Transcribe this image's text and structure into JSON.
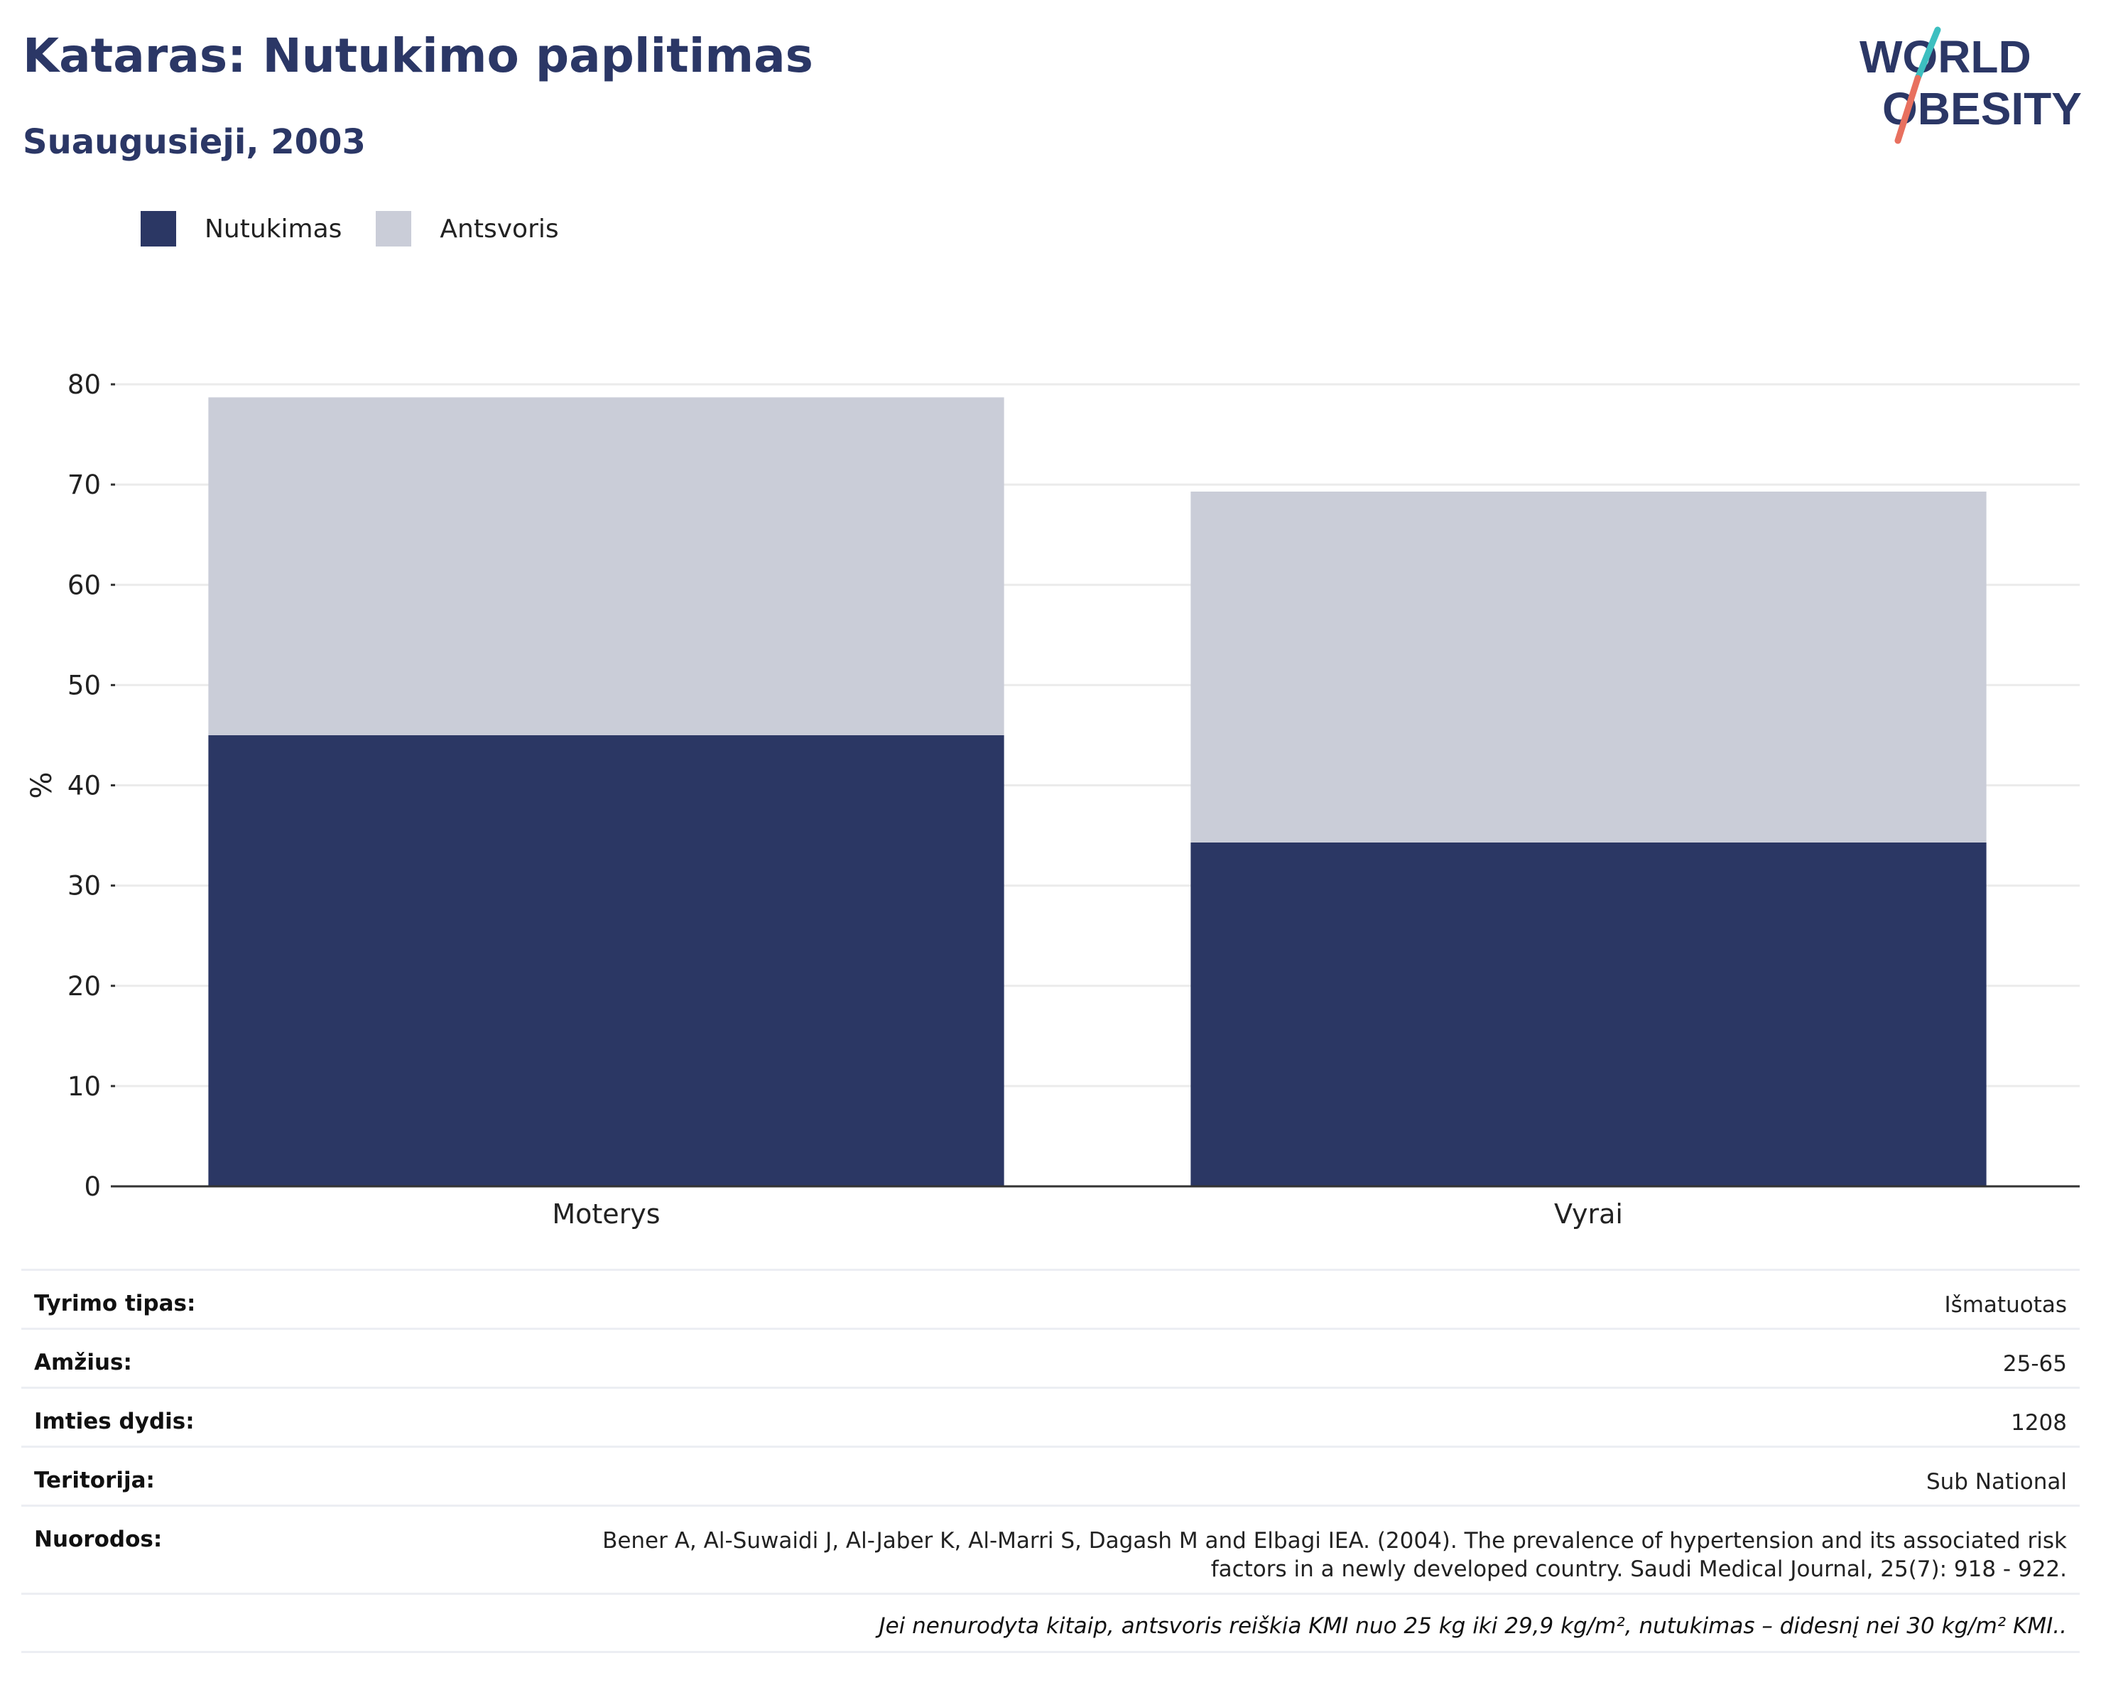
{
  "header": {
    "title": "Kataras: Nutukimo paplitimas",
    "subtitle": "Suaugusieji, 2003",
    "logo_line1": "WORLD",
    "logo_line2": "OBESITY"
  },
  "legend": [
    {
      "label": "Nutukimas",
      "color": "#2b3764"
    },
    {
      "label": "Antsvoris",
      "color": "#cacdd8"
    }
  ],
  "chart_data": {
    "type": "bar",
    "stacked": true,
    "categories": [
      "Moterys",
      "Vyrai"
    ],
    "series": [
      {
        "name": "Nutukimas",
        "values": [
          45.0,
          34.3
        ],
        "color": "#2b3764"
      },
      {
        "name": "Antsvoris",
        "values": [
          33.7,
          35.0
        ],
        "color": "#cacdd8"
      }
    ],
    "title": "Kataras: Nutukimo paplitimas",
    "subtitle": "Suaugusieji, 2003",
    "xlabel": "",
    "ylabel": "%",
    "ylim": [
      0,
      80
    ],
    "yticks": [
      0,
      10,
      20,
      30,
      40,
      50,
      60,
      70,
      80
    ],
    "grid": true,
    "legend_position": "top-left"
  },
  "info": {
    "rows": [
      {
        "label": "Tyrimo tipas:",
        "value": "Išmatuotas"
      },
      {
        "label": "Amžius:",
        "value": "25-65"
      },
      {
        "label": "Imties dydis:",
        "value": "1208"
      },
      {
        "label": "Teritorija:",
        "value": "Sub National"
      },
      {
        "label": "Nuorodos:",
        "value_line1": "Bener A, Al-Suwaidi J, Al-Jaber K, Al-Marri S, Dagash M and Elbagi IEA. (2004). The prevalence of hypertension and its associated risk",
        "value_line2": "factors in a newly developed country. Saudi Medical Journal, 25(7): 918 - 922."
      }
    ],
    "note": "Jei nenurodyta kitaip, antsvoris reiškia KMI nuo 25 kg iki 29,9 kg/m², nutukimas – didesnį nei 30 kg/m² KMI.."
  },
  "colors": {
    "brand_navy": "#2b3766",
    "logo_teal": "#3dbfc0",
    "logo_coral": "#e8705f"
  }
}
